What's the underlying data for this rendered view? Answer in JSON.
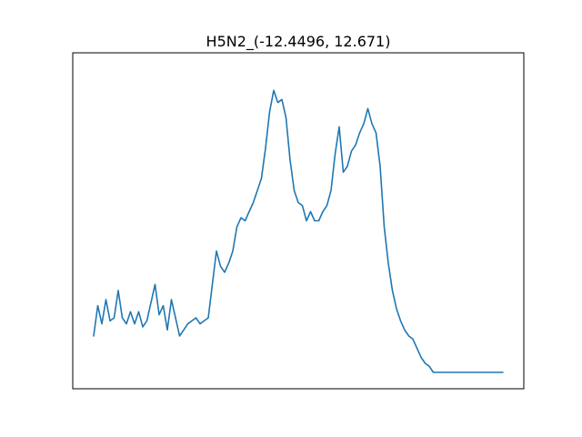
{
  "chart_data": {
    "type": "line",
    "title": "H5N2_(-12.4496, 12.671)",
    "xlabel": "",
    "ylabel": "",
    "x_ticks_visible": false,
    "y_ticks_visible": false,
    "grid": false,
    "series": [
      {
        "color": "#1f77b4",
        "x": [
          0.0,
          0.01,
          0.02,
          0.03,
          0.04,
          0.05,
          0.06,
          0.07,
          0.08,
          0.09,
          0.1,
          0.11,
          0.12,
          0.13,
          0.14,
          0.15,
          0.16,
          0.17,
          0.18,
          0.19,
          0.2,
          0.21,
          0.22,
          0.23,
          0.24,
          0.25,
          0.26,
          0.27,
          0.28,
          0.29,
          0.3,
          0.31,
          0.32,
          0.33,
          0.34,
          0.35,
          0.36,
          0.37,
          0.38,
          0.39,
          0.4,
          0.41,
          0.42,
          0.43,
          0.44,
          0.45,
          0.46,
          0.47,
          0.48,
          0.49,
          0.5,
          0.51,
          0.52,
          0.53,
          0.54,
          0.55,
          0.56,
          0.57,
          0.58,
          0.59,
          0.6,
          0.61,
          0.62,
          0.63,
          0.64,
          0.65,
          0.66,
          0.67,
          0.68,
          0.69,
          0.7,
          0.71,
          0.72,
          0.73,
          0.74,
          0.75,
          0.76,
          0.77,
          0.78,
          0.79,
          0.8,
          0.81,
          0.82,
          0.83,
          0.84,
          0.85,
          0.86,
          0.87,
          0.88,
          0.89,
          0.9,
          0.91,
          0.92,
          0.93,
          0.94,
          0.95,
          0.96,
          0.97,
          0.98,
          0.99,
          1.0
        ],
        "y": [
          0.12,
          0.22,
          0.16,
          0.24,
          0.17,
          0.18,
          0.27,
          0.18,
          0.16,
          0.2,
          0.16,
          0.2,
          0.15,
          0.17,
          0.23,
          0.29,
          0.19,
          0.22,
          0.14,
          0.24,
          0.18,
          0.12,
          0.14,
          0.16,
          0.17,
          0.18,
          0.16,
          0.17,
          0.18,
          0.29,
          0.4,
          0.35,
          0.33,
          0.36,
          0.4,
          0.48,
          0.51,
          0.5,
          0.53,
          0.56,
          0.6,
          0.64,
          0.74,
          0.86,
          0.93,
          0.89,
          0.9,
          0.84,
          0.7,
          0.6,
          0.56,
          0.55,
          0.5,
          0.53,
          0.5,
          0.5,
          0.53,
          0.55,
          0.6,
          0.72,
          0.81,
          0.66,
          0.68,
          0.73,
          0.75,
          0.79,
          0.82,
          0.87,
          0.82,
          0.79,
          0.68,
          0.48,
          0.36,
          0.27,
          0.21,
          0.17,
          0.14,
          0.12,
          0.11,
          0.08,
          0.05,
          0.03,
          0.02,
          0.0,
          0.0,
          0.0,
          0.0,
          0.0,
          0.0,
          0.0,
          0.0,
          0.0,
          0.0,
          0.0,
          0.0,
          0.0,
          0.0,
          0.0,
          0.0,
          0.0,
          0.0
        ]
      }
    ]
  }
}
